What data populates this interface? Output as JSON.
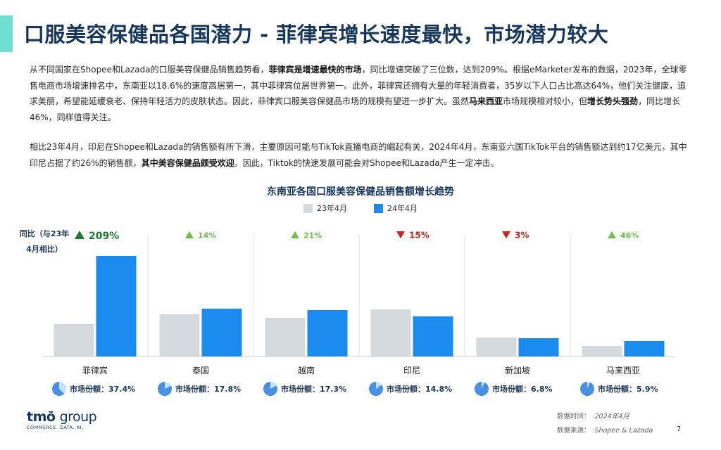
{
  "header": {
    "title": "口服美容保健品各国潜力 - 菲律宾增长速度最快，市场潜力较大"
  },
  "body": {
    "para1": [
      {
        "t": "从不同国家在Shopee和Lazada的口服美容保健品销售趋势看，",
        "b": false
      },
      {
        "t": "菲律宾是增速最快的市场",
        "b": true
      },
      {
        "t": "，同比增速突破了三位数，达到209%。根据eMarketer发布的数据，2023年，全球零售电商市场增速排名中，东南亚以18.6%的速度高居第一，其中菲律宾位居世界第一。此外，菲律宾还拥有大量的年轻消费者，35岁以下人口占比高达64%，他们关注健康，追求美丽，希望能延缓衰老、保持年轻活力的皮肤状态。因此，菲律宾口服美容保健品市场的规模有望进一步扩大。虽然",
        "b": false
      },
      {
        "t": "马来西亚",
        "b": true
      },
      {
        "t": "市场规模相对较小，但",
        "b": false
      },
      {
        "t": "增长势头强劲",
        "b": true
      },
      {
        "t": "，同比增长46%，同样值得关注。",
        "b": false
      }
    ],
    "para2": [
      {
        "t": "相比23年4月，印尼在Shopee和Lazada的销售额有所下滑，主要原因可能与TikTok直播电商的崛起有关，2024年4月，东南亚六国TikTok平台的销售额达到约17亿美元，其中印尼占据了约26%的销售额，",
        "b": false
      },
      {
        "t": "其中美容保健品颇受欢迎",
        "b": true
      },
      {
        "t": "。因此，Tiktok的快速发展可能会对Shopee和Lazada产生一定冲击。",
        "b": false
      }
    ]
  },
  "chart_data": {
    "type": "bar",
    "title": "东南亚各国口服美容保健品销售额增长趋势",
    "categories": [
      "菲律宾",
      "泰国",
      "越南",
      "印尼",
      "新加坡",
      "马来西亚"
    ],
    "series": [
      {
        "name": "23年4月",
        "color": "#d5dade",
        "values": [
          46,
          60,
          55,
          67,
          27,
          15
        ]
      },
      {
        "name": "24年4月",
        "color": "#1a8cf0",
        "values": [
          143,
          68,
          66,
          57,
          26,
          22
        ]
      }
    ],
    "yoy_label": "同比（与23年4月相比）",
    "yoy": [
      {
        "text": "209%",
        "dir": "up",
        "big": true
      },
      {
        "text": "14%",
        "dir": "up",
        "big": false
      },
      {
        "text": "21%",
        "dir": "up",
        "big": false
      },
      {
        "text": "15%",
        "dir": "down",
        "big": false
      },
      {
        "text": "3%",
        "dir": "down",
        "big": false
      },
      {
        "text": "46%",
        "dir": "up",
        "big": false
      }
    ],
    "market_share_label": "市场份额：",
    "market_share": [
      {
        "text": "37.4%",
        "value": 37.4
      },
      {
        "text": "17.8%",
        "value": 17.8
      },
      {
        "text": "17.3%",
        "value": 17.3
      },
      {
        "text": "14.8%",
        "value": 14.8
      },
      {
        "text": "6.8%",
        "value": 6.8
      },
      {
        "text": "5.9%",
        "value": 5.9
      }
    ],
    "colors": {
      "up": "#1e7b2e",
      "up_light": "#6cc04a",
      "down": "#c0281e",
      "pie_main": "#4a90e2",
      "pie_light": "#bfe3f7"
    }
  },
  "footer": {
    "logo_main": "tmō",
    "logo_group": "group",
    "logo_sub": "COMMERCE. DATA. AI.",
    "data_time_label": "数据时间：",
    "data_time": "2024年4月",
    "data_source_label": "数据来源：",
    "data_source": "Shopee & Lazada",
    "page_number": "7"
  }
}
